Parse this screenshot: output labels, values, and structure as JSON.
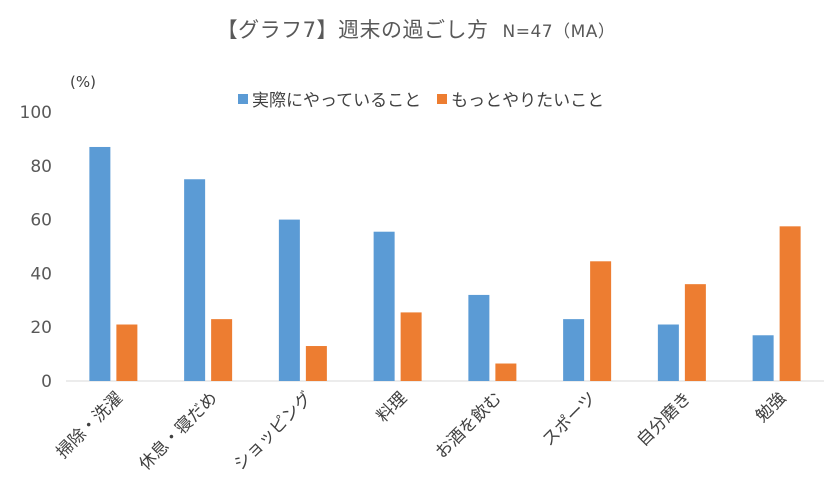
{
  "title": "【グラフ7】週末の過ごし方",
  "subtitle": "N=47（MA）",
  "unit_label": "(%)",
  "colors": {
    "series1": "#5B9BD5",
    "series2": "#ED7D31",
    "axis": "#D9D9D9"
  },
  "chart_data": {
    "type": "bar",
    "categories": [
      "掃除・洗濯",
      "休息・寝だめ",
      "ショッピング",
      "料理",
      "お酒を飲む",
      "スポーツ",
      "自分磨き",
      "勉強"
    ],
    "series": [
      {
        "name": "実際にやっていること",
        "values": [
          87,
          75,
          60,
          55.5,
          32,
          23,
          21,
          17
        ]
      },
      {
        "name": "もっとやりたいこと",
        "values": [
          21,
          23,
          13,
          25.5,
          6.5,
          44.5,
          36,
          57.5
        ]
      }
    ],
    "ylim": [
      0,
      100
    ],
    "yticks": [
      "0",
      "20",
      "40",
      "60",
      "80",
      "100"
    ],
    "grid": false,
    "legend": "top-center"
  }
}
